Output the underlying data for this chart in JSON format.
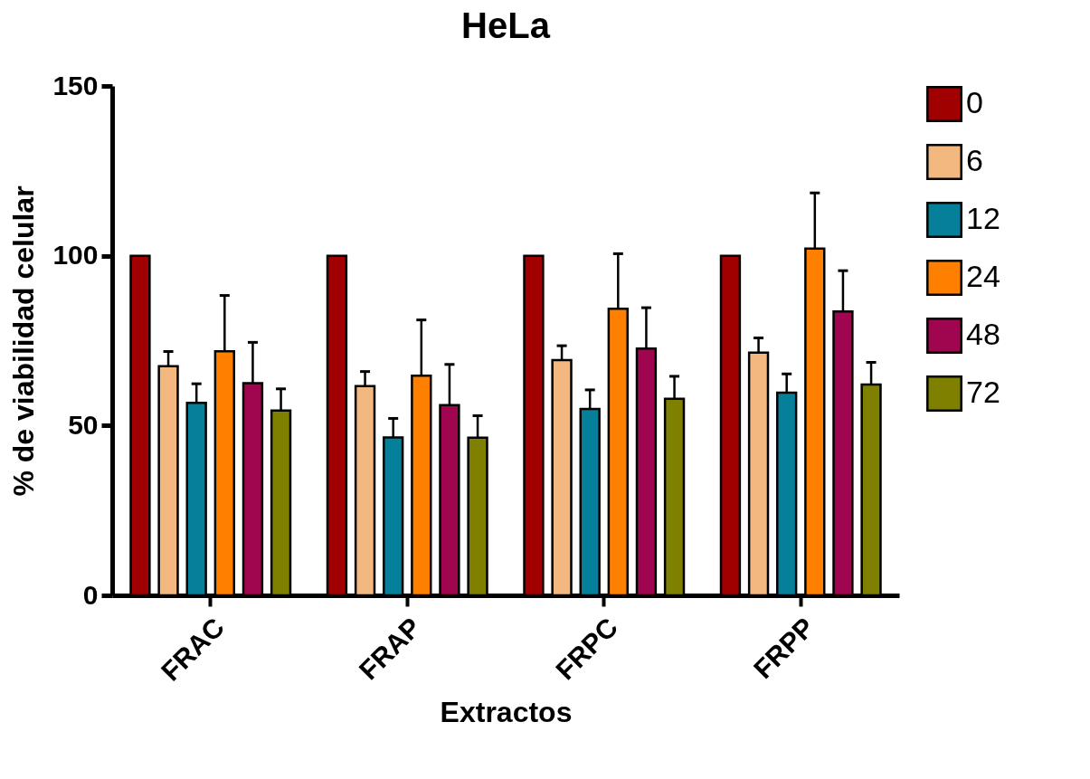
{
  "chart_data": {
    "type": "bar",
    "title": "HeLa",
    "xlabel": "Extractos",
    "ylabel": "% de viabilidad celular",
    "categories": [
      "FRAC",
      "FRAP",
      "FRPC",
      "FRPP"
    ],
    "series": [
      {
        "name": "0",
        "color": "#a00000",
        "values": [
          100,
          100,
          100,
          100
        ]
      },
      {
        "name": "6",
        "color": "#f2b880",
        "values": [
          67.5,
          61.6,
          69.3,
          71.5
        ],
        "errors": [
          4.3,
          4.3,
          4.2,
          4.3
        ]
      },
      {
        "name": "12",
        "color": "#067f9b",
        "values": [
          56.7,
          46.5,
          54.9,
          59.7
        ],
        "errors": [
          5.6,
          5.6,
          5.6,
          5.5
        ]
      },
      {
        "name": "24",
        "color": "#ff8000",
        "values": [
          71.9,
          64.7,
          84.4,
          102.1
        ],
        "errors": [
          16.4,
          16.4,
          16.2,
          16.4
        ]
      },
      {
        "name": "48",
        "color": "#a0054f",
        "values": [
          62.5,
          56.0,
          72.7,
          83.6
        ],
        "errors": [
          12,
          12,
          12,
          12
        ]
      },
      {
        "name": "72",
        "color": "#808000",
        "values": [
          54.4,
          46.4,
          57.9,
          62.1
        ],
        "errors": [
          6.4,
          6.5,
          6.6,
          6.5
        ]
      }
    ],
    "ylim": [
      0,
      150
    ],
    "yticks": [
      0,
      50,
      100,
      150
    ],
    "grid": false,
    "legend": "right"
  }
}
